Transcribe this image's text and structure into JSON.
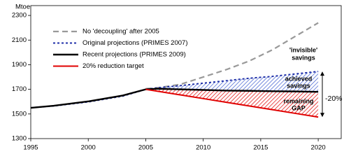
{
  "chart_data": {
    "type": "line",
    "y_label": "Mtoe",
    "x": [
      1995,
      1997,
      2000,
      2003,
      2005,
      2006,
      2008,
      2010,
      2012,
      2014,
      2016,
      2018,
      2020
    ],
    "series": [
      {
        "name": "No 'decoupling' after 2005",
        "color": "#999999",
        "style": "dashed",
        "values": [
          null,
          null,
          null,
          null,
          1705,
          1712,
          1740,
          1800,
          1860,
          1930,
          2020,
          2130,
          2240
        ]
      },
      {
        "name": "Original projections (PRIMES 2007)",
        "color": "#1f2fa8",
        "style": "dotted",
        "values": [
          1550,
          1565,
          1598,
          1645,
          1700,
          1712,
          1730,
          1750,
          1770,
          1790,
          1805,
          1825,
          1845
        ]
      },
      {
        "name": "Recent projections (PRIMES 2009)",
        "color": "#000000",
        "style": "solid",
        "values": [
          1550,
          1567,
          1602,
          1650,
          1700,
          1705,
          1700,
          1695,
          1690,
          1688,
          1685,
          1683,
          1680
        ]
      },
      {
        "name": "20% reduction target",
        "color": "#e00000",
        "style": "solid",
        "values": [
          null,
          null,
          null,
          null,
          1700,
          1685,
          1655,
          1625,
          1595,
          1565,
          1535,
          1505,
          1475
        ]
      }
    ],
    "annotations": [
      "'invisible'",
      "savings",
      "achieved",
      "savings",
      "remaining",
      "GAP",
      "-20%"
    ],
    "xlim": [
      1995,
      2022
    ],
    "ylim": [
      1300,
      2380
    ],
    "xticks": [
      1995,
      2000,
      2005,
      2010,
      2015,
      2020
    ],
    "yticks": [
      1300,
      1500,
      1700,
      1900,
      2100,
      2300
    ],
    "legend": "upper-left"
  }
}
